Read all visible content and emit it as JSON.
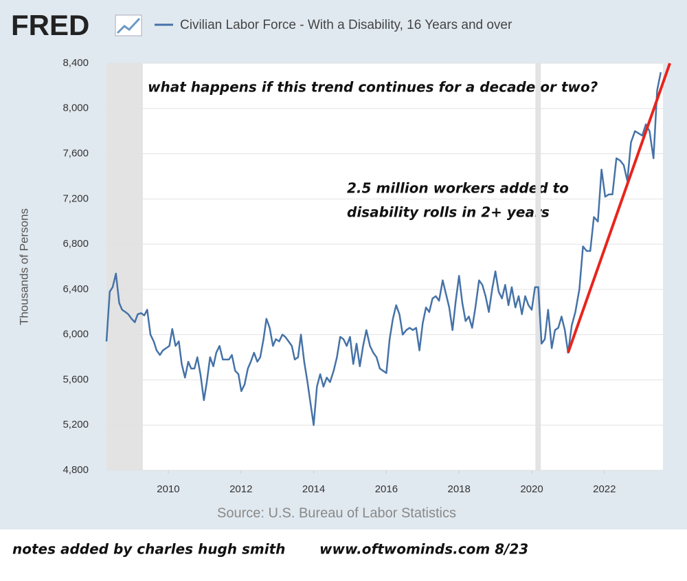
{
  "chart_data": {
    "type": "line",
    "logo": "FRED",
    "ylabel": "Thousands of Persons",
    "source": "Source: U.S. Bureau of Labor Statistics",
    "annotations": [
      "what happens if this trend continues for a decade or two?",
      "2.5 million workers added to",
      "disability rolls in 2+ years"
    ],
    "footer": [
      "notes added by charles hugh smith",
      "www.oftwominds.com  8/23"
    ],
    "xlim": [
      2008.3,
      2023.61
    ],
    "ylim": [
      4800,
      8400
    ],
    "xticks": [
      2010,
      2012,
      2014,
      2016,
      2018,
      2020,
      2022
    ],
    "yticks": [
      {
        "value": 4800,
        "label": "4,800"
      },
      {
        "value": 5200,
        "label": "5,200"
      },
      {
        "value": 5600,
        "label": "5,600"
      },
      {
        "value": 6000,
        "label": "6,000"
      },
      {
        "value": 6400,
        "label": "6,400"
      },
      {
        "value": 6800,
        "label": "6,800"
      },
      {
        "value": 7200,
        "label": "7,200"
      },
      {
        "value": 7600,
        "label": "7,600"
      },
      {
        "value": 8000,
        "label": "8,000"
      },
      {
        "value": 8400,
        "label": "8,400"
      }
    ],
    "grid": true,
    "recessions": [
      [
        2008.3,
        2009.3
      ],
      [
        2020.1,
        2020.25
      ]
    ],
    "trend_line": {
      "x": [
        2021.0,
        2023.8
      ],
      "values": [
        5840,
        8400
      ],
      "color": "#e8241c"
    },
    "x": [
      2008.3,
      2008.39,
      2008.47,
      2008.56,
      2008.65,
      2008.73,
      2008.82,
      2008.9,
      2008.99,
      2009.08,
      2009.16,
      2009.25,
      2009.34,
      2009.42,
      2009.51,
      2009.6,
      2009.68,
      2009.77,
      2009.85,
      2009.94,
      2010.03,
      2010.11,
      2010.2,
      2010.29,
      2010.37,
      2010.46,
      2010.55,
      2010.63,
      2010.72,
      2010.8,
      2010.89,
      2010.98,
      2011.06,
      2011.15,
      2011.24,
      2011.32,
      2011.41,
      2011.5,
      2011.58,
      2011.67,
      2011.75,
      2011.84,
      2011.93,
      2012.01,
      2012.1,
      2012.19,
      2012.27,
      2012.36,
      2012.45,
      2012.53,
      2012.62,
      2012.7,
      2012.79,
      2012.88,
      2012.96,
      2013.05,
      2013.14,
      2013.22,
      2013.31,
      2013.4,
      2013.48,
      2013.57,
      2013.65,
      2013.74,
      2013.83,
      2013.91,
      2014.0,
      2014.09,
      2014.18,
      2014.27,
      2014.36,
      2014.45,
      2014.55,
      2014.64,
      2014.73,
      2014.82,
      2014.91,
      2015.0,
      2015.09,
      2015.18,
      2015.27,
      2015.36,
      2015.45,
      2015.55,
      2015.64,
      2015.73,
      2015.82,
      2015.91,
      2016.0,
      2016.09,
      2016.18,
      2016.27,
      2016.36,
      2016.45,
      2016.55,
      2016.64,
      2016.73,
      2016.82,
      2016.91,
      2017.0,
      2017.09,
      2017.18,
      2017.27,
      2017.36,
      2017.45,
      2017.55,
      2017.64,
      2017.73,
      2017.82,
      2017.91,
      2018.0,
      2018.09,
      2018.18,
      2018.27,
      2018.36,
      2018.45,
      2018.55,
      2018.64,
      2018.73,
      2018.82,
      2018.91,
      2019.0,
      2019.09,
      2019.18,
      2019.27,
      2019.36,
      2019.45,
      2019.55,
      2019.64,
      2019.73,
      2019.82,
      2019.91,
      2020.0,
      2020.09,
      2020.18,
      2020.27,
      2020.36,
      2020.45,
      2020.55,
      2020.64,
      2020.73,
      2020.82,
      2020.91,
      2021.0,
      2021.1,
      2021.2,
      2021.31,
      2021.41,
      2021.51,
      2021.61,
      2021.71,
      2021.82,
      2021.92,
      2022.02,
      2022.12,
      2022.22,
      2022.33,
      2022.43,
      2022.53,
      2022.63,
      2022.73,
      2022.84,
      2022.94,
      2023.04,
      2023.14,
      2023.24,
      2023.35,
      2023.45,
      2023.55
    ],
    "series": [
      {
        "name": "Civilian Labor Force - With a Disability, 16 Years and over",
        "color": "#4572a7",
        "values": [
          5940,
          6380,
          6420,
          6540,
          6280,
          6220,
          6200,
          6180,
          6140,
          6110,
          6180,
          6190,
          6170,
          6220,
          6000,
          5940,
          5860,
          5820,
          5860,
          5880,
          5900,
          6050,
          5900,
          5940,
          5740,
          5620,
          5760,
          5700,
          5700,
          5800,
          5640,
          5420,
          5580,
          5800,
          5720,
          5840,
          5900,
          5780,
          5780,
          5780,
          5820,
          5680,
          5650,
          5500,
          5560,
          5700,
          5760,
          5840,
          5760,
          5800,
          5960,
          6140,
          6060,
          5900,
          5960,
          5940,
          6000,
          5980,
          5940,
          5900,
          5780,
          5800,
          6000,
          5760,
          5580,
          5400,
          5200,
          5540,
          5650,
          5540,
          5620,
          5580,
          5680,
          5800,
          5980,
          5960,
          5900,
          5980,
          5740,
          5920,
          5720,
          5900,
          6040,
          5900,
          5840,
          5800,
          5700,
          5680,
          5660,
          5960,
          6140,
          6260,
          6180,
          6000,
          6040,
          6060,
          6040,
          6060,
          5860,
          6100,
          6240,
          6200,
          6320,
          6340,
          6300,
          6480,
          6360,
          6240,
          6040,
          6300,
          6520,
          6280,
          6120,
          6160,
          6060,
          6240,
          6480,
          6440,
          6340,
          6200,
          6400,
          6560,
          6380,
          6320,
          6440,
          6260,
          6420,
          6240,
          6340,
          6180,
          6340,
          6260,
          6220,
          6420,
          6420,
          5920,
          5960,
          6220,
          5880,
          6040,
          6060,
          6160,
          6040,
          5840,
          6080,
          6200,
          6400,
          6780,
          6740,
          6740,
          7040,
          7000,
          7460,
          7220,
          7240,
          7240,
          7560,
          7540,
          7500,
          7360,
          7700,
          7800,
          7780,
          7760,
          7860,
          7800,
          7560,
          8160,
          8320
        ]
      }
    ]
  }
}
